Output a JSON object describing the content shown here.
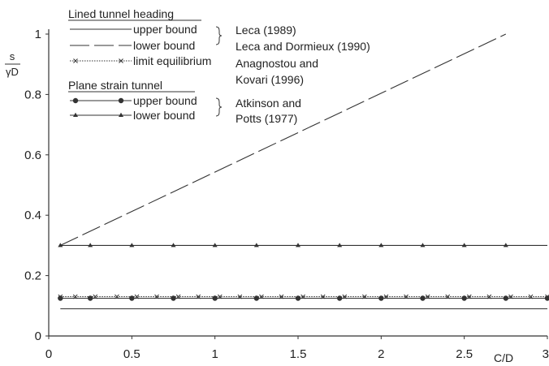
{
  "chart_data": {
    "type": "line",
    "xlabel": "C/D",
    "ylabel": {
      "numerator": "s",
      "denominator": "γD"
    },
    "xlim": [
      0,
      3
    ],
    "ylim": [
      0,
      1
    ],
    "xticks": [
      "0",
      "0.5",
      "1",
      "1.5",
      "2",
      "2.5",
      "3"
    ],
    "yticks": [
      "0",
      "0.2",
      "0.4",
      "0.6",
      "0.8",
      "1"
    ],
    "legend_groups": [
      {
        "title": "Lined tunnel heading",
        "entries": [
          {
            "series": "upper bound",
            "label": "upper bound",
            "source": "Leca (1989)"
          },
          {
            "series": "lower bound",
            "label": "lower bound",
            "source": "Leca and Dormieux (1990)"
          },
          {
            "series": "limit equilibrium",
            "label": "limit equilibrium",
            "source": "Anagnostou and Kovari (1996)"
          }
        ]
      },
      {
        "title": "Plane strain tunnel",
        "entries": [
          {
            "series": "upper bound (plane strain)",
            "label": "upper bound",
            "source": "Atkinson and Potts (1977)"
          },
          {
            "series": "lower bound (plane strain)",
            "label": "lower bound",
            "source": ""
          }
        ]
      }
    ],
    "source_text": [
      "Leca (1989)",
      "Leca and Dormieux (1990)",
      "Anagnostou and",
      "Kovari (1996)",
      "Atkinson and",
      "Potts (1977)"
    ],
    "series": [
      {
        "name": "upper bound",
        "group": "Lined tunnel heading",
        "style": "solid",
        "marker": "none",
        "x": [
          0.07,
          3.0
        ],
        "y": [
          0.09,
          0.09
        ]
      },
      {
        "name": "lower bound",
        "group": "Lined tunnel heading",
        "style": "long-dash",
        "marker": "none",
        "x": [
          0.07,
          2.75
        ],
        "y": [
          0.3,
          1.0
        ]
      },
      {
        "name": "limit equilibrium",
        "group": "Lined tunnel heading",
        "style": "dotted",
        "marker": "x",
        "x": [
          0.07,
          0.16,
          0.28,
          0.41,
          0.53,
          0.65,
          0.78,
          0.9,
          1.03,
          1.15,
          1.28,
          1.4,
          1.53,
          1.65,
          1.78,
          1.9,
          2.03,
          2.15,
          2.28,
          2.4,
          2.53,
          2.65,
          2.78,
          2.9,
          3.0
        ],
        "y": [
          0.13,
          0.13,
          0.13,
          0.13,
          0.13,
          0.13,
          0.13,
          0.13,
          0.13,
          0.13,
          0.13,
          0.13,
          0.13,
          0.13,
          0.13,
          0.13,
          0.13,
          0.13,
          0.13,
          0.13,
          0.13,
          0.13,
          0.13,
          0.13,
          0.13
        ]
      },
      {
        "name": "upper bound (plane strain)",
        "group": "Plane strain tunnel",
        "style": "solid",
        "marker": "circle",
        "x": [
          0.07,
          0.25,
          0.5,
          0.75,
          1.0,
          1.25,
          1.5,
          1.75,
          2.0,
          2.25,
          2.5,
          2.75,
          3.0
        ],
        "y": [
          0.125,
          0.125,
          0.125,
          0.125,
          0.125,
          0.125,
          0.125,
          0.125,
          0.125,
          0.125,
          0.125,
          0.125,
          0.125
        ]
      },
      {
        "name": "lower bound (plane strain)",
        "group": "Plane strain tunnel",
        "style": "solid",
        "marker": "triangle",
        "x": [
          0.07,
          0.25,
          0.5,
          0.75,
          1.0,
          1.25,
          1.5,
          1.75,
          2.0,
          2.25,
          2.5,
          2.75,
          3.0
        ],
        "y": [
          0.3,
          0.3,
          0.3,
          0.3,
          0.3,
          0.3,
          0.3,
          0.3,
          0.3,
          0.3,
          0.3,
          0.3,
          0.3
        ]
      }
    ],
    "line_color": "#333333"
  }
}
